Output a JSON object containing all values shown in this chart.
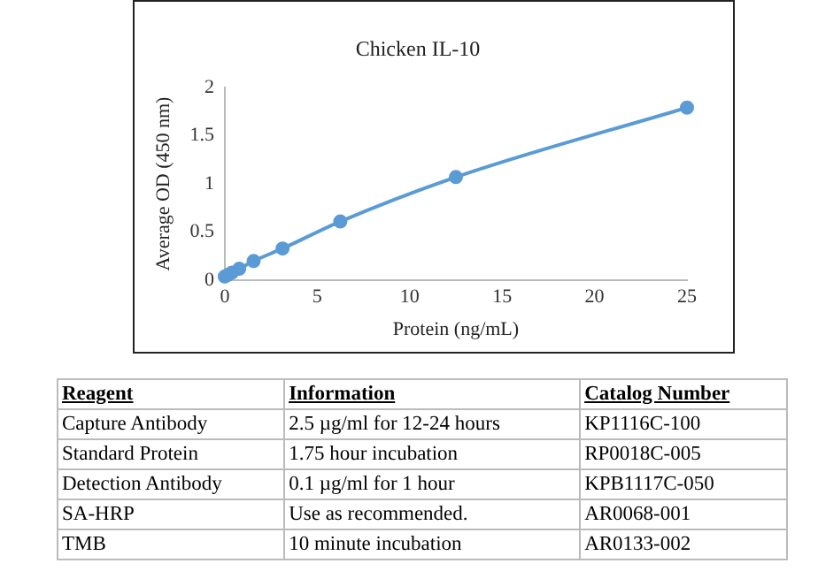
{
  "chart_data": [
    {
      "type": "line",
      "title": "Chicken IL-10",
      "xlabel": "Protein (ng/mL)",
      "ylabel": "Average OD (450 nm)",
      "x": [
        0,
        0.195,
        0.39,
        0.78,
        1.56,
        3.125,
        6.25,
        12.5,
        25
      ],
      "series": [
        {
          "color": "#5b9bd5",
          "values": [
            0.04,
            0.06,
            0.08,
            0.12,
            0.2,
            0.33,
            0.61,
            1.07,
            1.79
          ]
        }
      ],
      "xlim": [
        0,
        25
      ],
      "xticks": [
        0,
        5,
        10,
        15,
        20,
        25
      ],
      "ylim": [
        0,
        2
      ],
      "yticks": [
        0,
        0.5,
        1,
        1.5,
        2
      ],
      "grid": false,
      "legend": false,
      "marker": "circle",
      "line_style": "solid"
    },
    {
      "type": "other",
      "annotations": [
        "Reagent",
        "Information",
        "Catalog Number",
        "Capture Antibody",
        "2.5 µg/ml for 12-24 hours",
        "KP1116C-100",
        "Standard Protein",
        "1.75 hour incubation",
        "RP0018C-005",
        "Detection Antibody",
        "0.1 µg/ml for 1 hour",
        "KPB1117C-050",
        "SA-HRP",
        "Use as recommended.",
        "AR0068-001",
        "TMB",
        "10 minute incubation",
        "AR0133-002"
      ]
    }
  ]
}
